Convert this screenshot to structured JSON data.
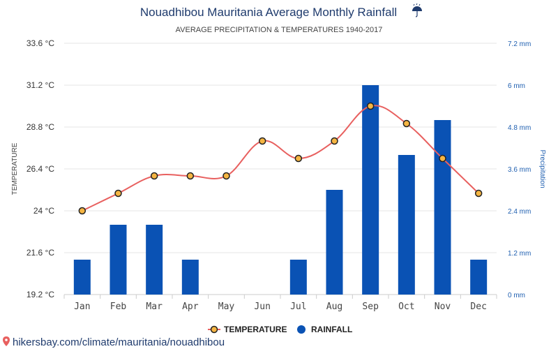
{
  "chart_data": {
    "type": "bar+line",
    "title": "Nouadhibou Mauritania Average Monthly Rainfall",
    "title_icon": "umbrella-rain-icon",
    "subtitle": "AVERAGE PRECIPITATION & TEMPERATURES 1940-2017",
    "categories": [
      "Jan",
      "Feb",
      "Mar",
      "Apr",
      "May",
      "Jun",
      "Jul",
      "Aug",
      "Sep",
      "Oct",
      "Nov",
      "Dec"
    ],
    "series": [
      {
        "name": "TEMPERATURE",
        "kind": "line",
        "axis": "left",
        "color": "#e8605f",
        "marker_color": "#f5b542",
        "values": [
          24,
          25,
          26,
          26,
          26,
          28,
          27,
          28,
          30,
          29,
          27,
          25
        ]
      },
      {
        "name": "RAINFALL",
        "kind": "bar",
        "axis": "right",
        "color": "#0a52b4",
        "values": [
          1,
          2,
          2,
          1,
          0,
          0,
          1,
          3,
          6,
          4,
          5,
          1
        ]
      }
    ],
    "y_left": {
      "label": "TEMPERATURE",
      "min": 19.2,
      "max": 33.6,
      "ticks": [
        "19.2 °C",
        "21.6 °C",
        "24 °C",
        "26.4 °C",
        "28.8 °C",
        "31.2 °C",
        "33.6 °C"
      ]
    },
    "y_right": {
      "label": "Precipitation",
      "min": 0,
      "max": 7.2,
      "ticks": [
        "0 mm",
        "1.2 mm",
        "2.4 mm",
        "3.6 mm",
        "4.8 mm",
        "6 mm",
        "7.2 mm"
      ]
    },
    "grid": true,
    "legend_position": "bottom-center"
  },
  "footer": {
    "source_icon": "location-pin-icon",
    "source_text": "hikersbay.com/climate/mauritania/nouadhibou"
  }
}
